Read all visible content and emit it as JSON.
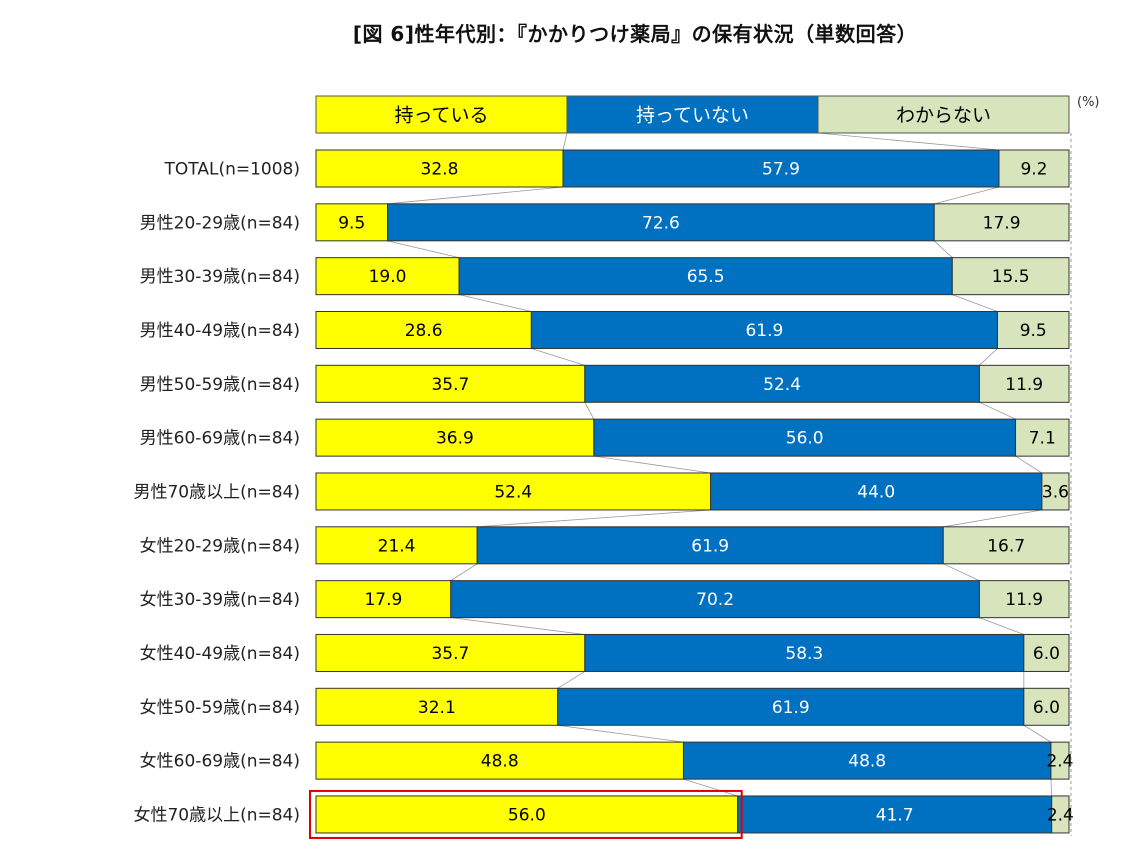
{
  "title": "[図 6]性年代別：『かかりつけ薬局』の保有状況（単数回答）",
  "unit": "(%)",
  "colors": {
    "have": "#FFFF00",
    "not_have": "#0070C0",
    "unknown": "#D8E4BC",
    "highlight": "#E00000"
  },
  "chart_data": {
    "type": "bar",
    "orientation": "horizontal",
    "stacked": true,
    "percent": true,
    "xlim": [
      0,
      100
    ],
    "legend_position": "top",
    "categories": [
      "TOTAL(n=1008)",
      "男性20-29歳(n=84)",
      "男性30-39歳(n=84)",
      "男性40-49歳(n=84)",
      "男性50-59歳(n=84)",
      "男性60-69歳(n=84)",
      "男性70歳以上(n=84)",
      "女性20-29歳(n=84)",
      "女性30-39歳(n=84)",
      "女性40-49歳(n=84)",
      "女性50-59歳(n=84)",
      "女性60-69歳(n=84)",
      "女性70歳以上(n=84)"
    ],
    "series": [
      {
        "name": "持っている",
        "values": [
          32.8,
          9.5,
          19.0,
          28.6,
          35.7,
          36.9,
          52.4,
          21.4,
          17.9,
          35.7,
          32.1,
          48.8,
          56.0
        ]
      },
      {
        "name": "持っていない",
        "values": [
          57.9,
          72.6,
          65.5,
          61.9,
          52.4,
          56.0,
          44.0,
          61.9,
          70.2,
          58.3,
          61.9,
          48.8,
          41.7
        ]
      },
      {
        "name": "わからない",
        "values": [
          9.2,
          17.9,
          15.5,
          9.5,
          11.9,
          7.1,
          3.6,
          16.7,
          11.9,
          6.0,
          6.0,
          2.4,
          2.4
        ]
      }
    ],
    "highlight": {
      "category": "女性70歳以上(n=84)",
      "series": "持っている"
    }
  }
}
